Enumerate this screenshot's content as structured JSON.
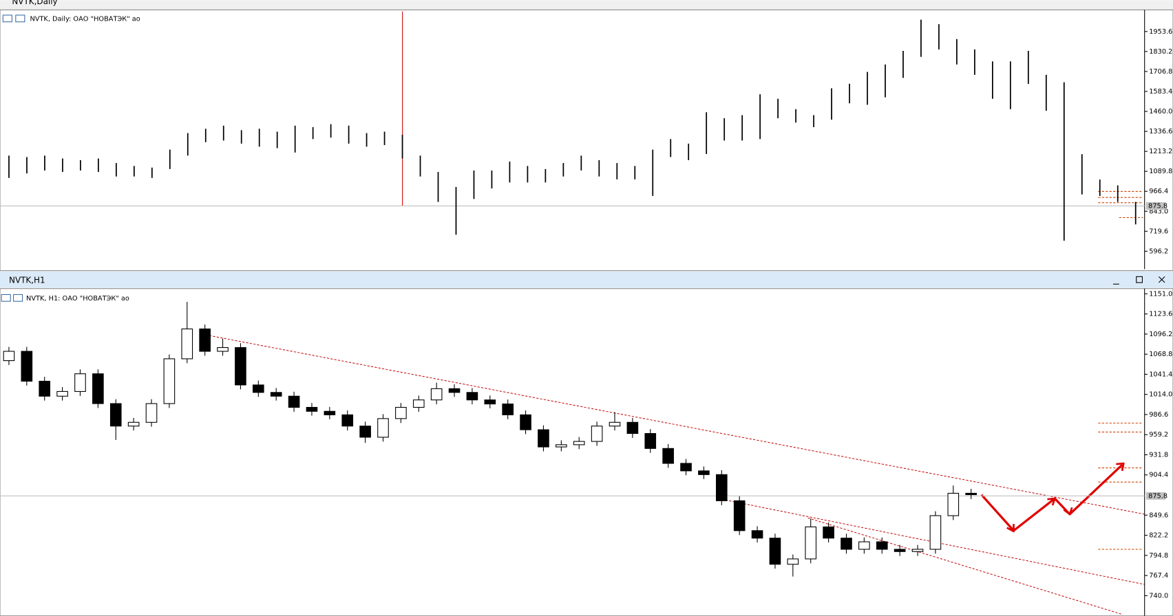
{
  "chart_data": [
    {
      "type": "ohlc",
      "window_title": "NVTK,Daily",
      "title": "NVTK, Daily:  ОАО \"НОВАТЭК\" ао",
      "high": [
        1187,
        1178,
        1187,
        1169,
        1159,
        1169,
        1141,
        1123,
        1113,
        1224,
        1326,
        1353,
        1372,
        1344,
        1353,
        1335,
        1372,
        1363,
        1381,
        1372,
        1326,
        1335,
        1316,
        1187,
        1086,
        993,
        1095,
        1095,
        1150,
        1123,
        1104,
        1141,
        1187,
        1159,
        1141,
        1123,
        1224,
        1289,
        1261,
        1455,
        1418,
        1437,
        1566,
        1538,
        1474,
        1437,
        1603,
        1631,
        1704,
        1750,
        1834,
        2027,
        1999,
        1907,
        1843,
        1769,
        1769,
        1834,
        1686,
        1640,
        1196,
        1039,
        1003,
        901
      ],
      "low": [
        1049,
        1077,
        1095,
        1086,
        1095,
        1086,
        1058,
        1058,
        1049,
        1104,
        1187,
        1270,
        1280,
        1261,
        1242,
        1233,
        1206,
        1289,
        1298,
        1261,
        1242,
        1252,
        1169,
        1058,
        901,
        698,
        919,
        984,
        1021,
        1021,
        1021,
        1058,
        1095,
        1058,
        1040,
        1040,
        938,
        1178,
        1159,
        1197,
        1280,
        1280,
        1289,
        1418,
        1391,
        1363,
        1409,
        1510,
        1501,
        1547,
        1667,
        1797,
        1843,
        1750,
        1686,
        1538,
        1474,
        1630,
        1464,
        661,
        947,
        938,
        901,
        762
      ],
      "color": "#000000",
      "current_price": 875.8,
      "current_price_label": "875.8",
      "ylim": [
        485.4,
        2078
      ],
      "yticks": [
        1953.6,
        1830.2,
        1706.8,
        1583.4,
        {
          "value": 1460,
          "label": "1460.0"
        },
        1336.6,
        1213.2,
        1089.8,
        966.4,
        {
          "value": 843,
          "label": "843.0"
        },
        719.6,
        596.2
      ]
    },
    {
      "type": "candlestick",
      "window_title": "NVTK,H1",
      "title": "NVTK, H1:  ОАО \"НОВАТЭК\" ао",
      "open": [
        1060,
        1072.7,
        1032.0,
        1011.6,
        1018.0,
        1042.1,
        1001.5,
        970.9,
        976.0,
        1001.5,
        1062.5,
        1103.2,
        1072.7,
        1077.8,
        1026.9,
        1016.7,
        1011.6,
        996.4,
        991.0,
        986.2,
        970.9,
        955.7,
        981.1,
        996.4,
        1006.5,
        1021.8,
        1016.7,
        1006.5,
        1001.0,
        986.2,
        965.9,
        942.5,
        945.5,
        950.0,
        970.9,
        976.0,
        960.8,
        940.4,
        920.1,
        909.9,
        904.8,
        869.2,
        828.5,
        818.3,
        782.7,
        790.0,
        833.6,
        818.3,
        803.1,
        813.3,
        803.1,
        800.0,
        803.1,
        848.9,
        879.4
      ],
      "high": [
        1078.7,
        1078.7,
        1038.0,
        1024.0,
        1048.1,
        1048.1,
        1007.5,
        982.0,
        1007.5,
        1068.5,
        1140.0,
        1109.2,
        1090.0,
        1083.8,
        1032.9,
        1022.7,
        1017.6,
        1002.4,
        997.0,
        992.2,
        976.9,
        987.1,
        1002.4,
        1012.5,
        1030.0,
        1027.8,
        1022.7,
        1012.5,
        1007.0,
        992.2,
        971.9,
        951.5,
        956.0,
        976.9,
        990.0,
        982.0,
        966.8,
        946.4,
        926.1,
        915.9,
        910.8,
        875.2,
        834.5,
        824.3,
        796.0,
        845.0,
        839.6,
        824.3,
        819.3,
        819.3,
        809.1,
        809.1,
        854.9,
        890.0,
        885.4
      ],
      "low": [
        1054.0,
        1026.0,
        1005.6,
        1005.6,
        1012.0,
        995.5,
        952.0,
        964.9,
        970.0,
        995.5,
        1056.5,
        1066.7,
        1066.7,
        1020.9,
        1010.7,
        1005.6,
        990.4,
        985.0,
        980.2,
        964.9,
        948.0,
        949.7,
        975.1,
        990.4,
        1000.5,
        1010.7,
        1000.5,
        995.0,
        980.2,
        959.9,
        936.5,
        936.5,
        939.5,
        944.0,
        964.9,
        954.8,
        934.4,
        914.1,
        903.9,
        898.8,
        863.2,
        822.5,
        812.3,
        776.7,
        766.0,
        784.0,
        812.3,
        797.1,
        797.1,
        797.1,
        794.0,
        794.0,
        797.1,
        842.9,
        871.5
      ],
      "close": [
        1072.7,
        1032.0,
        1011.6,
        1018.0,
        1042.1,
        1001.5,
        970.9,
        976.0,
        1001.5,
        1062.5,
        1103.2,
        1072.7,
        1077.8,
        1026.9,
        1016.7,
        1011.6,
        996.4,
        991.0,
        986.2,
        970.9,
        955.7,
        981.1,
        996.4,
        1006.5,
        1021.8,
        1016.7,
        1006.5,
        1001.0,
        986.2,
        965.9,
        942.5,
        945.5,
        950.0,
        970.9,
        976.0,
        960.8,
        940.4,
        920.1,
        909.9,
        904.8,
        869.2,
        828.5,
        818.3,
        782.7,
        790.0,
        833.6,
        818.3,
        803.1,
        813.3,
        803.1,
        800.0,
        803.1,
        848.9,
        879.4,
        877.5
      ],
      "color": "#000000",
      "current_price": 875.8,
      "current_price_label": "875.8",
      "ylim": [
        712.5,
        1156.1
      ],
      "yticks": [
        {
          "value": 1151,
          "label": "1151.0"
        },
        1123.6,
        1096.2,
        1068.8,
        1041.4,
        {
          "value": 1014,
          "label": "1014.0"
        },
        986.6,
        959.2,
        931.8,
        904.4,
        849.6,
        822.2,
        794.8,
        767.4,
        {
          "value": 740,
          "label": "740.0"
        }
      ]
    }
  ]
}
